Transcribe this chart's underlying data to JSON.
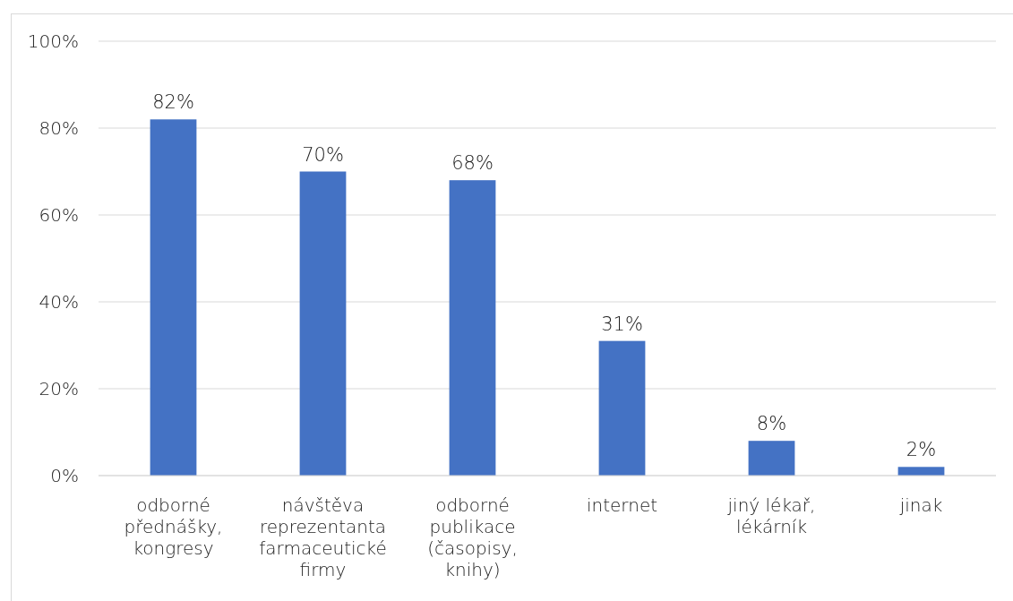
{
  "chart_data": {
    "type": "bar",
    "categories": [
      "odborné přednášky, kongresy",
      "návštěva reprezentanta farmaceutické firmy",
      "odborné publikace (časopisy, knihy)",
      "internet",
      "jiný lékař, lékárník",
      "jinak"
    ],
    "values": [
      82,
      70,
      68,
      31,
      8,
      2
    ],
    "value_labels": [
      "82%",
      "70%",
      "68%",
      "31%",
      "8%",
      "2%"
    ],
    "color": "#4472c4",
    "ylim": [
      0,
      100
    ],
    "yticks": [
      {
        "value": 0,
        "label": "0%"
      },
      {
        "value": 20,
        "label": "20%"
      },
      {
        "value": 40,
        "label": "40%"
      },
      {
        "value": 60,
        "label": "60%"
      },
      {
        "value": 80,
        "label": "80%"
      },
      {
        "value": 100,
        "label": "100%"
      }
    ],
    "grid": "y"
  }
}
